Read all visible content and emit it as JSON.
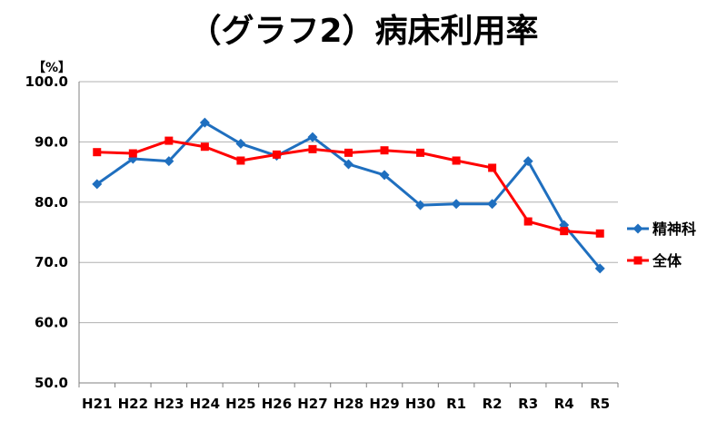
{
  "chart_data": {
    "type": "line",
    "title": "（グラフ2）病床利用率",
    "ylabel": "【%】",
    "xlabel": "",
    "ylim": [
      50,
      100
    ],
    "y_ticks": [
      "100.0",
      "90.0",
      "80.0",
      "70.0",
      "60.0",
      "50.0"
    ],
    "y_tick_values": [
      100,
      90,
      80,
      70,
      60,
      50
    ],
    "grid": true,
    "legend_position": "right",
    "categories": [
      "H21",
      "H22",
      "H23",
      "H24",
      "H25",
      "H26",
      "H27",
      "H28",
      "H29",
      "H30",
      "R1",
      "R2",
      "R3",
      "R4",
      "R5"
    ],
    "series": [
      {
        "name": "精神科",
        "color": "#1f6fbf",
        "marker": "diamond",
        "values": [
          83.0,
          87.2,
          86.8,
          93.2,
          89.7,
          87.7,
          90.8,
          86.3,
          84.5,
          79.5,
          79.7,
          79.7,
          86.8,
          76.2,
          69.0
        ]
      },
      {
        "name": "全体",
        "color": "#ff0000",
        "marker": "square",
        "values": [
          88.3,
          88.1,
          90.2,
          89.2,
          86.9,
          87.9,
          88.8,
          88.2,
          88.6,
          88.2,
          86.9,
          85.7,
          76.8,
          75.2,
          74.8
        ]
      }
    ]
  }
}
